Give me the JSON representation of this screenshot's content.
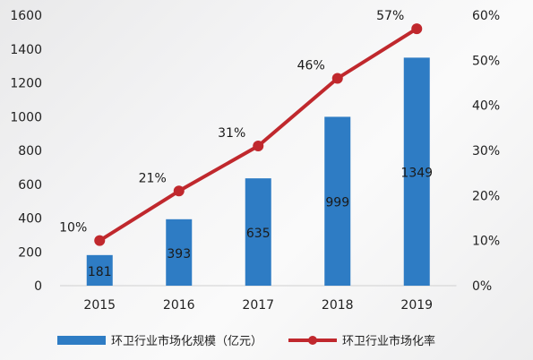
{
  "chart_data": {
    "type": "bar+line",
    "categories": [
      "2015",
      "2016",
      "2017",
      "2018",
      "2019"
    ],
    "series": [
      {
        "name": "环卫行业市场化规模（亿元）",
        "type": "bar",
        "axis": "left",
        "values": [
          181,
          393,
          635,
          999,
          1349
        ],
        "labels": [
          "181",
          "393",
          "635",
          "999",
          "1349"
        ],
        "color": "#2e7cc4"
      },
      {
        "name": "环卫行业市场化率",
        "type": "line",
        "axis": "right",
        "values": [
          10,
          21,
          31,
          46,
          57
        ],
        "labels": [
          "10%",
          "21%",
          "31%",
          "46%",
          "57%"
        ],
        "color": "#c0282d"
      }
    ],
    "y_left": {
      "range": [
        0,
        1600
      ],
      "ticks": [
        "0",
        "200",
        "400",
        "600",
        "800",
        "1000",
        "1200",
        "1400",
        "1600"
      ]
    },
    "y_right": {
      "range": [
        0,
        60
      ],
      "ticks": [
        "0%",
        "10%",
        "20%",
        "30%",
        "40%",
        "50%",
        "60%"
      ]
    },
    "legend": {
      "position": "bottom"
    },
    "grid": false
  }
}
